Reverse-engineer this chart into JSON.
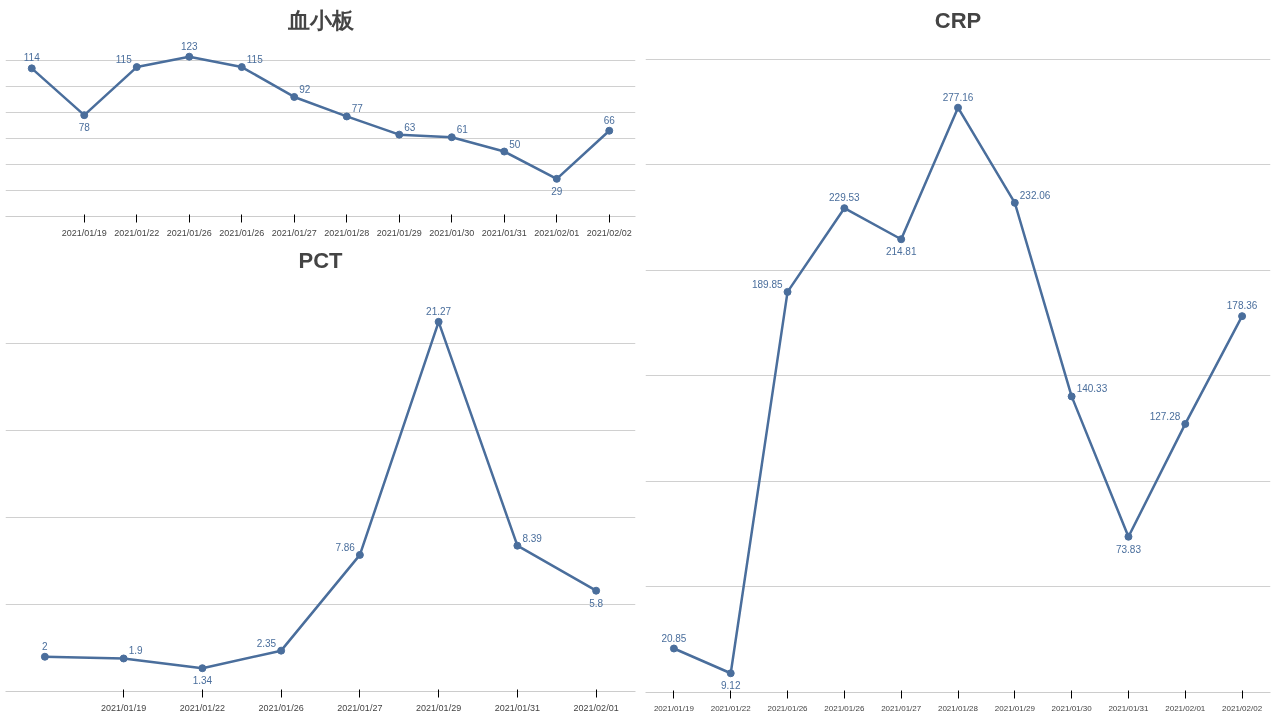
{
  "chart_data": [
    {
      "type": "line",
      "title": "血小板",
      "categories": [
        null,
        "2021/01/19",
        "2021/01/22",
        "2021/01/26",
        "2021/01/26",
        "2021/01/27",
        "2021/01/28",
        "2021/01/29",
        "2021/01/30",
        "2021/01/31",
        "2021/02/01",
        "2021/02/02"
      ],
      "series": [
        {
          "color": "#4a6e9c",
          "values": [
            114,
            78,
            115,
            123,
            115,
            92,
            77,
            63,
            61,
            50,
            29,
            66
          ]
        }
      ],
      "grid": "y",
      "tick_labels": "x",
      "marker": "circle",
      "data_labels": true
    },
    {
      "type": "line",
      "title": "PCT",
      "categories": [
        null,
        "2021/01/19",
        "2021/01/22",
        "2021/01/26",
        "2021/01/27",
        "2021/01/29",
        "2021/01/31",
        "2021/02/01"
      ],
      "series": [
        {
          "color": "#4a6e9c",
          "values": [
            2,
            1.9,
            1.34,
            2.35,
            7.86,
            21.27,
            8.39,
            5.8
          ]
        }
      ],
      "grid": "y",
      "tick_labels": "x",
      "marker": "circle",
      "data_labels": true
    },
    {
      "type": "line",
      "title": "CRP",
      "categories": [
        "2021/01/19",
        "2021/01/22",
        "2021/01/26",
        "2021/01/26",
        "2021/01/27",
        "2021/01/28",
        "2021/01/29",
        "2021/01/30",
        "2021/01/31",
        "2021/02/01",
        "2021/02/02"
      ],
      "series": [
        {
          "color": "#4a6e9c",
          "values": [
            20.85,
            9.12,
            189.85,
            229.53,
            214.81,
            277.16,
            232.06,
            140.33,
            73.83,
            127.28,
            178.36
          ]
        }
      ],
      "grid": "y",
      "tick_labels": "x",
      "marker": "circle",
      "data_labels": true
    }
  ]
}
